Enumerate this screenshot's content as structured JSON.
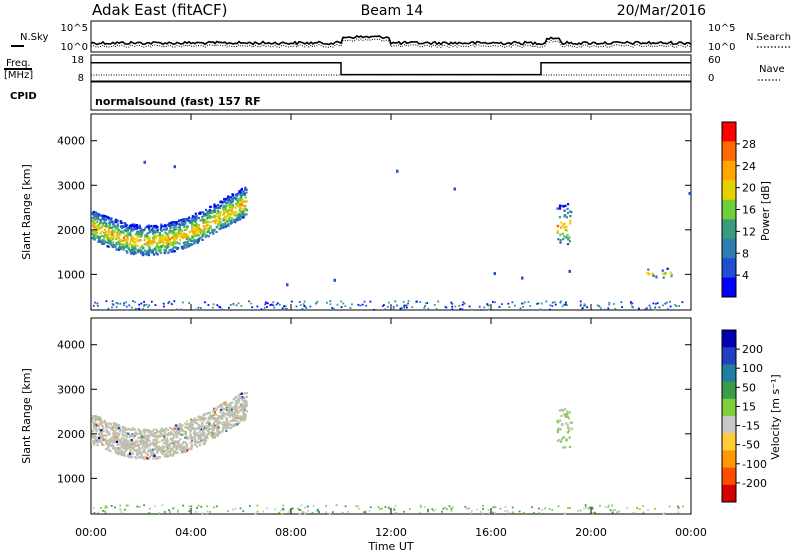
{
  "header": {
    "station": "Adak East (fitACF)",
    "beam": "Beam 14",
    "date": "20/Mar/2016"
  },
  "nsky_panel": {
    "left_label": "N.Sky",
    "right_label": "N.Search",
    "right_legend_marker": "dotted",
    "ticks": [
      "10^5",
      "10^0"
    ]
  },
  "freq_panel": {
    "left_label_line1": "Freq.",
    "left_label_line2": "[MHz]",
    "left_ticks": [
      "18",
      "8"
    ],
    "right_label": "Nave",
    "right_legend_marker": "dotted",
    "right_ticks": [
      "60",
      "0"
    ],
    "freq_steps": [
      {
        "from": 0,
        "to": 10,
        "level": 0.55
      },
      {
        "from": 10,
        "to": 18,
        "level": 0.15
      },
      {
        "from": 18,
        "to": 24,
        "level": 0.55
      }
    ]
  },
  "cpid_panel": {
    "label": "CPID",
    "mode_text": "normalsound (fast) 157 RF"
  },
  "time_axis": {
    "label": "Time UT",
    "ticks": [
      "00:00",
      "04:00",
      "08:00",
      "12:00",
      "16:00",
      "20:00",
      "00:00"
    ],
    "range_hours": [
      0,
      24
    ]
  },
  "colors": {
    "power_scale": [
      "#0000ff",
      "#1f4fd0",
      "#2e7fb0",
      "#3a9c7c",
      "#6fcf3b",
      "#e6d200",
      "#ffa600",
      "#ff6a00",
      "#ff0000"
    ],
    "velocity_scale": [
      "#d40000",
      "#ff4d00",
      "#ff9900",
      "#ffcc33",
      "#c8c8c8",
      "#7fd03a",
      "#3a9c4a",
      "#1f7fa0",
      "#2040c0",
      "#0000b0"
    ],
    "ground_scatter": "#bfbfb0"
  },
  "chart_data": [
    {
      "type": "heatmap",
      "panel": "power",
      "ylabel": "Slant Range [km]",
      "yticks": [
        "4000",
        "3000",
        "2000",
        "1000"
      ],
      "ylim": [
        200,
        4600
      ],
      "xlim": [
        0,
        24
      ],
      "colorbar": {
        "label": "Power [dB]",
        "ticks": [
          "28",
          "24",
          "20",
          "16",
          "12",
          "8",
          "4"
        ],
        "range": [
          0,
          32
        ]
      },
      "features": [
        {
          "name": "main_echo_band",
          "x_range": [
            0,
            6.2
          ],
          "range_km": [
            1550,
            3000
          ]
        },
        {
          "name": "echo_patch_19UT",
          "x_range": [
            18.6,
            19.2
          ],
          "range_km": [
            1700,
            2600
          ]
        },
        {
          "name": "echo_patch_22UT",
          "x_range": [
            22.2,
            23.2
          ],
          "range_km": [
            950,
            1150
          ]
        },
        {
          "name": "near_range_clutter",
          "x_range": [
            0,
            24
          ],
          "range_km": [
            200,
            450
          ]
        }
      ]
    },
    {
      "type": "heatmap",
      "panel": "velocity",
      "ylabel": "Slant Range [km]",
      "yticks": [
        "4000",
        "3000",
        "2000",
        "1000"
      ],
      "ylim": [
        200,
        4600
      ],
      "xlim": [
        0,
        24
      ],
      "colorbar": {
        "label": "Velocity [m s⁻¹]",
        "ticks": [
          "200",
          "100",
          "50",
          "15",
          "-15",
          "-50",
          "-100",
          "-200"
        ],
        "range": [
          -300,
          300
        ]
      },
      "features": [
        {
          "name": "ground_scatter_band",
          "x_range": [
            0,
            6.2
          ],
          "range_km": [
            1550,
            3000
          ],
          "velocity": 0
        },
        {
          "name": "echo_patch_19UT",
          "x_range": [
            18.6,
            19.2
          ],
          "range_km": [
            1700,
            2600
          ],
          "velocity": 30
        },
        {
          "name": "near_range_clutter",
          "x_range": [
            0,
            24
          ],
          "range_km": [
            200,
            450
          ]
        }
      ]
    }
  ]
}
